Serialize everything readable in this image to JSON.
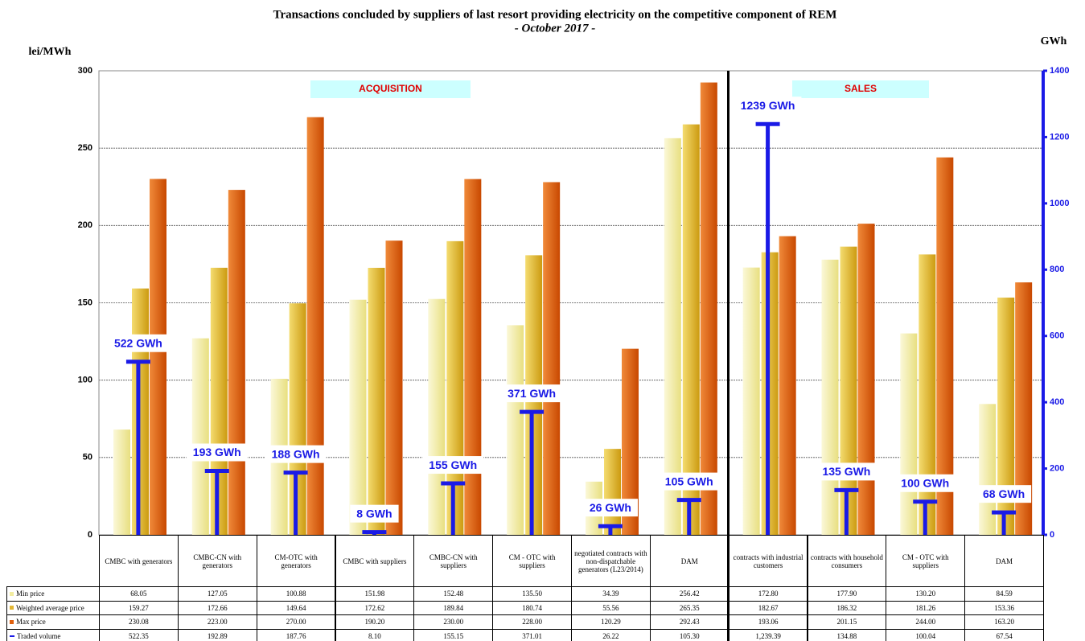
{
  "chart_data": {
    "type": "bar",
    "title": "Transactions concluded by suppliers of last resort providing electricity on the competitive component of REM",
    "subtitle": "- October 2017 -",
    "y_label": "lei/MWh",
    "y2_label": "GWh",
    "section_labels": [
      "ACQUISITION",
      "SALES"
    ],
    "categories": [
      "CMBC with generators",
      "CMBC-CN with generators",
      "CM-OTC with generators",
      "CMBC with suppliers",
      "CMBC-CN with suppliers",
      "CM - OTC with suppliers",
      "negotiated contracts with non-dispatchable generators (L23/2014)",
      "DAM",
      "contracts with industrial customers",
      "contracts with household consumers",
      "CM - OTC with suppliers",
      "DAM"
    ],
    "ylim": [
      0,
      300
    ],
    "yticks": [
      0,
      50,
      100,
      150,
      200,
      250,
      300
    ],
    "y2lim": [
      0,
      1400
    ],
    "y2ticks": [
      0,
      200,
      400,
      600,
      800,
      1000,
      1200,
      1400
    ],
    "grid": true,
    "series": [
      {
        "name": "Min price",
        "color": "#f2eca0",
        "values": [
          68.05,
          127.05,
          100.88,
          151.98,
          152.48,
          135.5,
          34.39,
          256.42,
          172.8,
          177.9,
          130.2,
          84.59
        ],
        "value_labels": [
          "68.05",
          "127.05",
          "100.88",
          "151.98",
          "152.48",
          "135.50",
          "34.39",
          "256.42",
          "172.80",
          "177.90",
          "130.20",
          "84.59"
        ]
      },
      {
        "name": "Weighted average price",
        "color": "#e2b634",
        "values": [
          159.27,
          172.66,
          149.64,
          172.62,
          189.84,
          180.74,
          55.56,
          265.35,
          182.67,
          186.32,
          181.26,
          153.36
        ],
        "value_labels": [
          "159.27",
          "172.66",
          "149.64",
          "172.62",
          "189.84",
          "180.74",
          "55.56",
          "265.35",
          "182.67",
          "186.32",
          "181.26",
          "153.36"
        ]
      },
      {
        "name": "Max price",
        "color": "#e0600e",
        "values": [
          230.08,
          223.0,
          270.0,
          190.2,
          230.0,
          228.0,
          120.29,
          292.43,
          193.06,
          201.15,
          244.0,
          163.2
        ],
        "value_labels": [
          "230.08",
          "223.00",
          "270.00",
          "190.20",
          "230.00",
          "228.00",
          "120.29",
          "292.43",
          "193.06",
          "201.15",
          "244.00",
          "163.20"
        ]
      },
      {
        "name": "Traded volume",
        "color": "#1a1ae6",
        "axis": "y2",
        "values": [
          522.35,
          192.89,
          187.76,
          8.1,
          155.15,
          371.01,
          26.22,
          105.3,
          1239.39,
          134.88,
          100.04,
          67.54
        ],
        "value_labels": [
          "522.35",
          "192.89",
          "187.76",
          "8.10",
          "155.15",
          "371.01",
          "26.22",
          "105.30",
          "1,239.39",
          "134.88",
          "100.04",
          "67.54"
        ],
        "point_labels": [
          "522 GWh",
          "193 GWh",
          "188 GWh",
          "8 GWh",
          "155 GWh",
          "371 GWh",
          "26 GWh",
          "105 GWh",
          "1239 GWh",
          "135 GWh",
          "100 GWh",
          "68 GWh"
        ]
      }
    ]
  }
}
